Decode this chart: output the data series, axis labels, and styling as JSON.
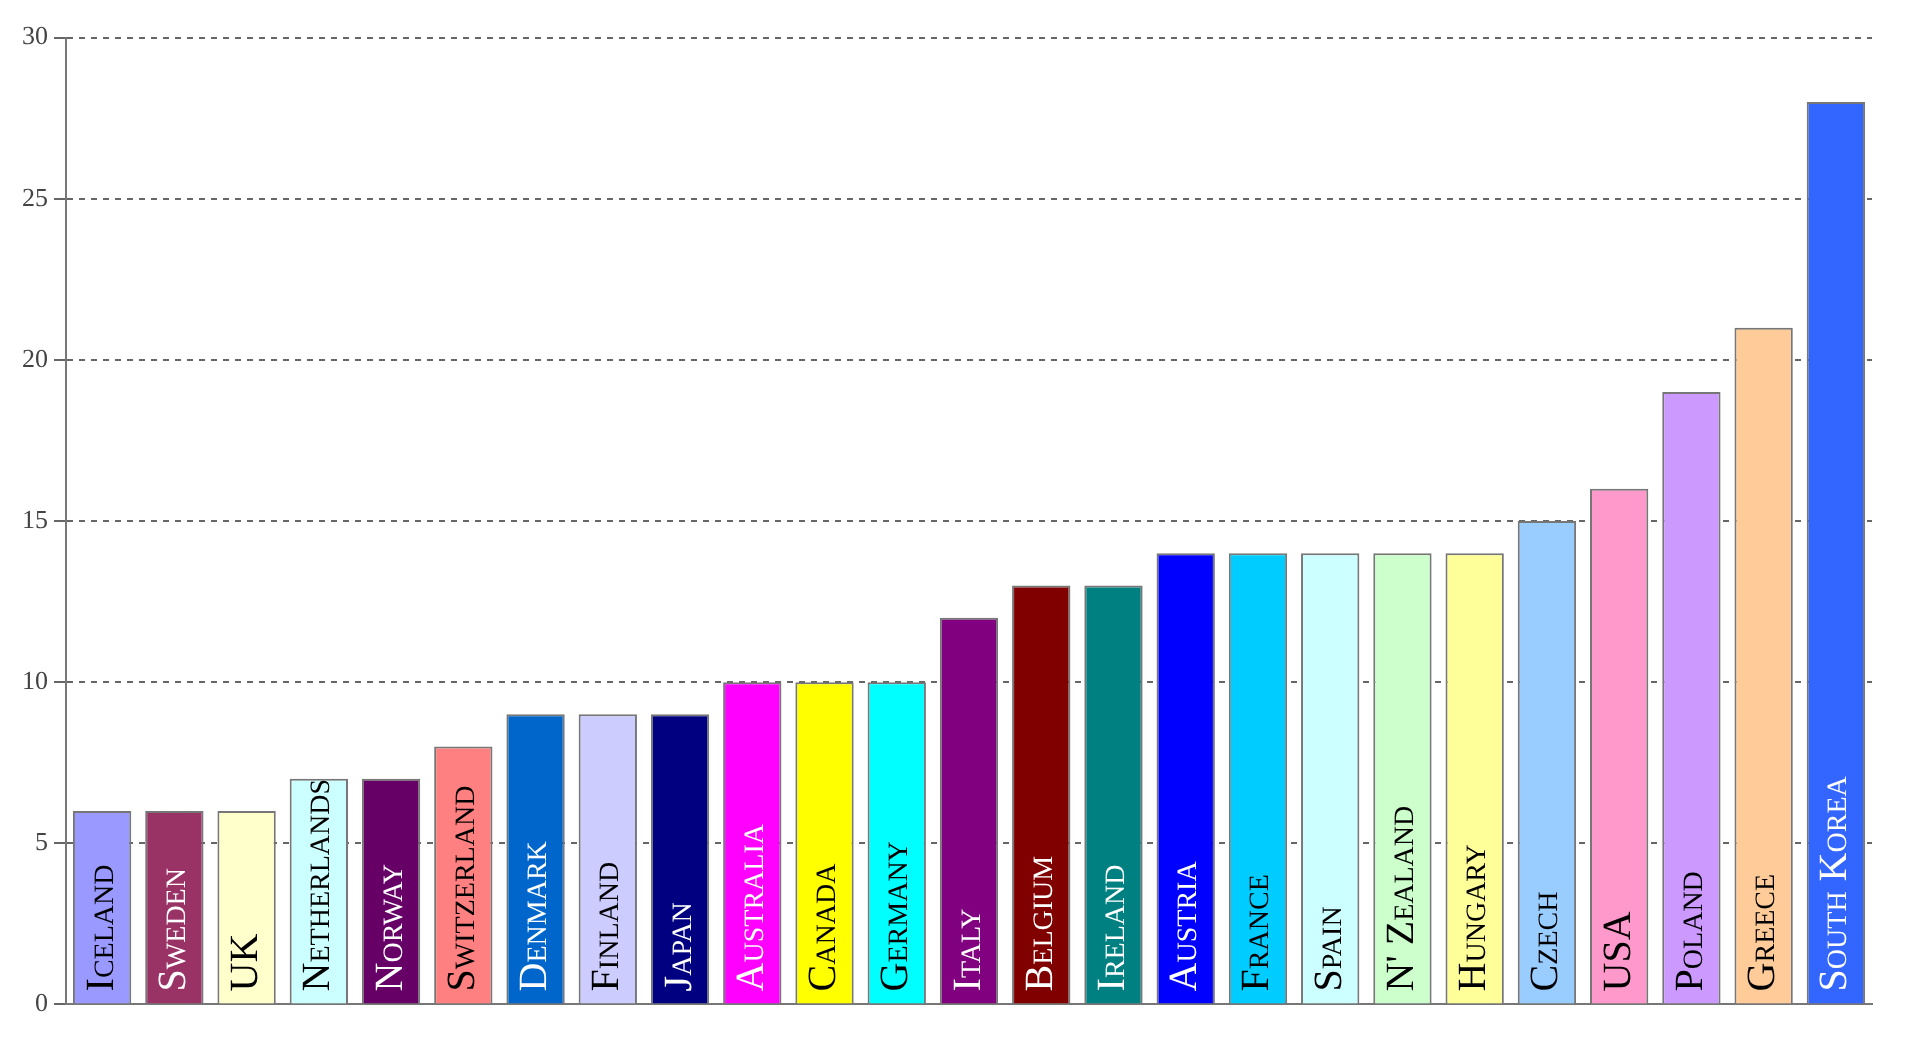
{
  "chart_data": {
    "type": "bar",
    "categories": [
      "Iceland",
      "Sweden",
      "UK",
      "Netherlands",
      "Norway",
      "Switzerland",
      "Denmark",
      "Finland",
      "Japan",
      "Australia",
      "Canada",
      "Germany",
      "Italy",
      "Belgium",
      "Ireland",
      "Austria",
      "France",
      "Spain",
      "N' Zealand",
      "Hungary",
      "Czech",
      "USA",
      "Poland",
      "Greece",
      "South Korea"
    ],
    "values": [
      6,
      6,
      6,
      7,
      7,
      8,
      9,
      9,
      9,
      10,
      10,
      10,
      12,
      13,
      13,
      14,
      14,
      14,
      14,
      14,
      15,
      16,
      19,
      21,
      28
    ],
    "colors": [
      "#9999ff",
      "#993366",
      "#ffffcc",
      "#ccffff",
      "#660066",
      "#ff8080",
      "#0066cc",
      "#ccccff",
      "#000080",
      "#ff00ff",
      "#ffff00",
      "#00ffff",
      "#800080",
      "#800000",
      "#008080",
      "#0000ff",
      "#00ccff",
      "#ccffff",
      "#ccffcc",
      "#ffff99",
      "#99ccff",
      "#ff99cc",
      "#cc99ff",
      "#ffcc99",
      "#3366ff"
    ],
    "ylim": [
      0,
      30
    ],
    "yticks": [
      0,
      5,
      10,
      15,
      20,
      25,
      30
    ],
    "grid": "y",
    "legend": false
  }
}
